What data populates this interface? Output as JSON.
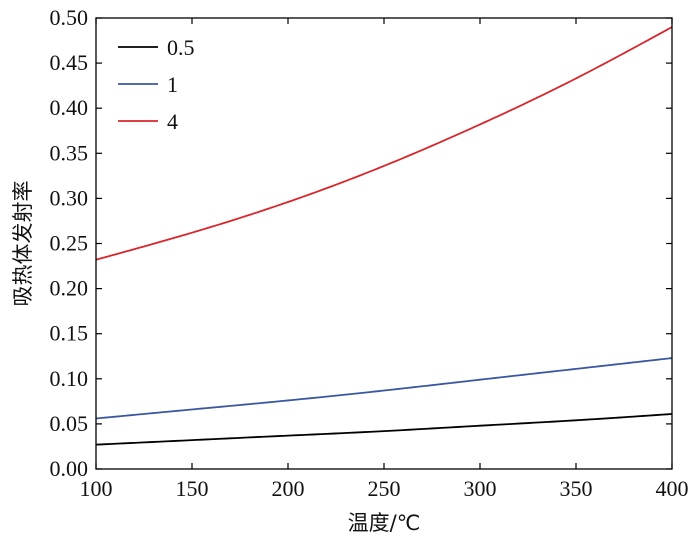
{
  "chart_data": {
    "type": "line",
    "xlabel": "温度/℃",
    "ylabel": "吸热体发射率",
    "xlim": [
      100,
      400
    ],
    "ylim": [
      0.0,
      0.5
    ],
    "x_ticks": [
      100,
      150,
      200,
      250,
      300,
      350,
      400
    ],
    "x_tick_labels": [
      "100",
      "150",
      "200",
      "250",
      "300",
      "350",
      "400"
    ],
    "y_ticks": [
      0.0,
      0.05,
      0.1,
      0.15,
      0.2,
      0.25,
      0.3,
      0.35,
      0.4,
      0.45,
      0.5
    ],
    "y_tick_labels": [
      "0.00",
      "0.05",
      "0.10",
      "0.15",
      "0.20",
      "0.25",
      "0.30",
      "0.35",
      "0.40",
      "0.45",
      "0.50"
    ],
    "grid": false,
    "legend_position": "top-left",
    "x": [
      100,
      150,
      200,
      250,
      300,
      350,
      400
    ],
    "series": [
      {
        "name": "0.5",
        "color": "#000000",
        "values": [
          0.027,
          0.032,
          0.037,
          0.042,
          0.048,
          0.054,
          0.061
        ]
      },
      {
        "name": "1",
        "color": "#3a57a0",
        "values": [
          0.056,
          0.066,
          0.076,
          0.087,
          0.099,
          0.111,
          0.123
        ]
      },
      {
        "name": "4",
        "color": "#d8262c",
        "values": [
          0.232,
          0.262,
          0.296,
          0.336,
          0.382,
          0.433,
          0.49
        ]
      }
    ]
  }
}
